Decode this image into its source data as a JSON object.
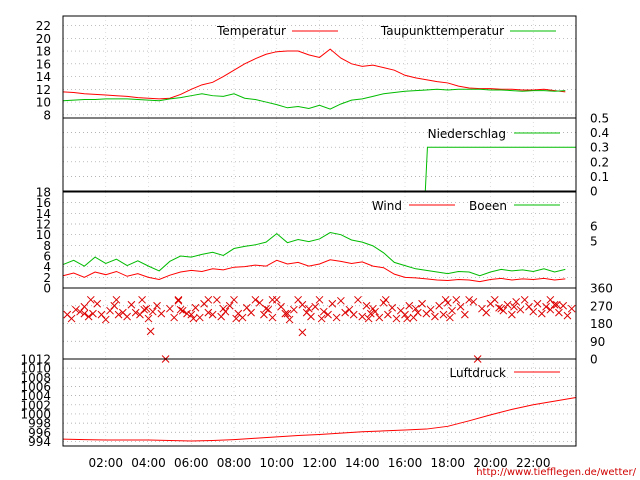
{
  "chart_data": [
    {
      "type": "line",
      "x_hours": [
        0,
        0.5,
        1,
        1.5,
        2,
        2.5,
        3,
        3.5,
        4,
        4.5,
        5,
        5.5,
        6,
        6.5,
        7,
        7.5,
        8,
        8.5,
        9,
        9.5,
        10,
        10.5,
        11,
        11.5,
        12,
        12.5,
        13,
        13.5,
        14,
        14.5,
        15,
        15.5,
        16,
        16.5,
        17,
        17.5,
        18,
        18.5,
        19,
        19.5,
        20,
        20.5,
        21,
        21.5,
        22,
        22.5,
        23,
        23.5
      ],
      "series": [
        {
          "name": "Temperatur",
          "color": "#ff0000",
          "values": [
            11.6,
            11.5,
            11.3,
            11.2,
            11.1,
            11.0,
            10.9,
            10.7,
            10.6,
            10.5,
            10.6,
            11.2,
            12.0,
            12.7,
            13.1,
            14.0,
            15.0,
            16.0,
            16.8,
            17.5,
            17.9,
            18.0,
            18.0,
            17.4,
            17.0,
            18.3,
            16.9,
            16.0,
            15.6,
            15.8,
            15.4,
            15.0,
            14.2,
            13.8,
            13.5,
            13.2,
            13.0,
            12.5,
            12.2,
            12.1,
            12.1,
            12.0,
            12.0,
            11.9,
            11.9,
            12.0,
            11.8,
            11.6
          ]
        },
        {
          "name": "Taupunkttemperatur",
          "color": "#00bb00",
          "values": [
            10.2,
            10.3,
            10.4,
            10.4,
            10.5,
            10.5,
            10.5,
            10.4,
            10.3,
            10.2,
            10.5,
            10.7,
            11.0,
            11.3,
            11.0,
            10.9,
            11.3,
            10.6,
            10.4,
            10.0,
            9.6,
            9.1,
            9.3,
            9.0,
            9.5,
            8.9,
            9.7,
            10.3,
            10.5,
            10.9,
            11.3,
            11.5,
            11.7,
            11.8,
            11.9,
            12.0,
            11.9,
            12.0,
            12.0,
            12.0,
            11.9,
            11.9,
            11.8,
            11.7,
            11.8,
            11.8,
            11.7,
            11.8
          ]
        }
      ],
      "yticks": [
        8,
        10,
        12,
        14,
        16,
        18,
        20,
        22
      ],
      "ylim": [
        7.5,
        23.5
      ]
    },
    {
      "type": "line",
      "series": [
        {
          "name": "Niederschlag",
          "color": "#00bb00",
          "points": [
            [
              0,
              0
            ],
            [
              16.95,
              0
            ],
            [
              17.05,
              0.3
            ],
            [
              24,
              0.3
            ]
          ]
        }
      ],
      "yticks_right": [
        0,
        0.1,
        0.2,
        0.3,
        0.4,
        0.5
      ],
      "ylim": [
        0,
        0.5
      ]
    },
    {
      "type": "line",
      "x_hours": [
        0,
        0.5,
        1,
        1.5,
        2,
        2.5,
        3,
        3.5,
        4,
        4.5,
        5,
        5.5,
        6,
        6.5,
        7,
        7.5,
        8,
        8.5,
        9,
        9.5,
        10,
        10.5,
        11,
        11.5,
        12,
        12.5,
        13,
        13.5,
        14,
        14.5,
        15,
        15.5,
        16,
        16.5,
        17,
        17.5,
        18,
        18.5,
        19,
        19.5,
        20,
        20.5,
        21,
        21.5,
        22,
        22.5,
        23,
        23.5
      ],
      "series": [
        {
          "name": "Wind",
          "color": "#ff0000",
          "values": [
            2.3,
            2.8,
            2.0,
            3.0,
            2.5,
            3.1,
            2.2,
            2.7,
            2.0,
            1.6,
            2.4,
            3.0,
            3.3,
            3.1,
            3.6,
            3.4,
            3.9,
            4.0,
            4.3,
            4.1,
            5.2,
            4.5,
            4.8,
            4.1,
            4.5,
            5.3,
            5.0,
            4.6,
            4.9,
            4.1,
            3.8,
            2.6,
            2.0,
            1.9,
            1.7,
            1.5,
            1.4,
            1.6,
            1.5,
            1.2,
            1.6,
            1.8,
            1.5,
            1.7,
            1.6,
            1.8,
            1.5,
            1.7
          ]
        },
        {
          "name": "Boeen",
          "color": "#00bb00",
          "values": [
            4.4,
            5.2,
            4.1,
            5.8,
            4.6,
            5.4,
            4.2,
            5.1,
            4.1,
            3.2,
            5.0,
            6.0,
            5.8,
            6.3,
            6.7,
            6.1,
            7.4,
            7.8,
            8.1,
            8.6,
            10.2,
            8.5,
            9.1,
            8.7,
            9.2,
            10.4,
            10.0,
            9.0,
            8.6,
            7.9,
            6.6,
            4.8,
            4.2,
            3.6,
            3.3,
            3.0,
            2.7,
            3.1,
            3.0,
            2.3,
            3.0,
            3.5,
            3.2,
            3.4,
            3.1,
            3.6,
            3.0,
            3.5
          ]
        }
      ],
      "yticks": [
        0,
        2,
        4,
        6,
        8,
        10,
        12,
        14,
        16,
        18
      ],
      "yticks_right": [
        "5",
        "6"
      ],
      "ylim": [
        0,
        18
      ]
    },
    {
      "type": "scatter",
      "series": [
        {
          "name": "",
          "color": "#dd0000",
          "points": [
            [
              0.2,
              225
            ],
            [
              0.4,
              205
            ],
            [
              0.6,
              250
            ],
            [
              0.8,
              240
            ],
            [
              1.0,
              265
            ],
            [
              1.2,
              215
            ],
            [
              1.4,
              230
            ],
            [
              1.6,
              280
            ],
            [
              1.8,
              225
            ],
            [
              2.0,
              200
            ],
            [
              2.2,
              245
            ],
            [
              2.4,
              270
            ],
            [
              2.6,
              225
            ],
            [
              2.8,
              235
            ],
            [
              3.0,
              215
            ],
            [
              3.2,
              275
            ],
            [
              3.4,
              235
            ],
            [
              3.6,
              225
            ],
            [
              3.8,
              250
            ],
            [
              4.0,
              205
            ],
            [
              4.2,
              240
            ],
            [
              4.4,
              270
            ],
            [
              4.6,
              230
            ],
            [
              4.8,
              0
            ],
            [
              5.0,
              255
            ],
            [
              5.2,
              210
            ],
            [
              5.4,
              295
            ],
            [
              5.6,
              245
            ],
            [
              5.8,
              230
            ],
            [
              6.0,
              225
            ],
            [
              6.2,
              260
            ],
            [
              6.4,
              210
            ],
            [
              6.6,
              280
            ],
            [
              6.8,
              235
            ],
            [
              7.0,
              225
            ],
            [
              7.2,
              300
            ],
            [
              7.4,
              215
            ],
            [
              7.6,
              240
            ],
            [
              7.8,
              270
            ],
            [
              8.0,
              300
            ],
            [
              8.2,
              230
            ],
            [
              8.4,
              210
            ],
            [
              8.6,
              260
            ],
            [
              8.8,
              235
            ],
            [
              9.0,
              300
            ],
            [
              9.2,
              285
            ],
            [
              9.4,
              225
            ],
            [
              9.6,
              250
            ],
            [
              9.8,
              210
            ],
            [
              10.0,
              300
            ],
            [
              10.2,
              265
            ],
            [
              10.4,
              230
            ],
            [
              10.6,
              200
            ],
            [
              10.8,
              250
            ],
            [
              11.0,
              300
            ],
            [
              11.2,
              275
            ],
            [
              11.4,
              235
            ],
            [
              11.6,
              215
            ],
            [
              11.8,
              265
            ],
            [
              12.0,
              300
            ],
            [
              12.2,
              240
            ],
            [
              12.4,
              225
            ],
            [
              12.6,
              280
            ],
            [
              12.8,
              210
            ],
            [
              13.0,
              295
            ],
            [
              13.2,
              235
            ],
            [
              13.4,
              250
            ],
            [
              13.6,
              225
            ],
            [
              13.8,
              300
            ],
            [
              14.0,
              215
            ],
            [
              14.2,
              270
            ],
            [
              14.4,
              230
            ],
            [
              14.6,
              240
            ],
            [
              14.8,
              210
            ],
            [
              15.0,
              285
            ],
            [
              15.2,
              225
            ],
            [
              15.4,
              260
            ],
            [
              15.6,
              205
            ],
            [
              15.8,
              245
            ],
            [
              16.0,
              225
            ],
            [
              16.2,
              270
            ],
            [
              16.4,
              210
            ],
            [
              16.6,
              235
            ],
            [
              16.8,
              280
            ],
            [
              17.0,
              230
            ],
            [
              17.2,
              250
            ],
            [
              17.4,
              215
            ],
            [
              17.6,
              270
            ],
            [
              17.8,
              225
            ],
            [
              18.0,
              285
            ],
            [
              18.2,
              245
            ],
            [
              18.4,
              300
            ],
            [
              18.6,
              265
            ],
            [
              18.8,
              225
            ],
            [
              19.0,
              300
            ],
            [
              19.2,
              290
            ],
            [
              19.4,
              0
            ],
            [
              19.6,
              255
            ],
            [
              19.8,
              235
            ],
            [
              20.0,
              280
            ],
            [
              20.2,
              300
            ],
            [
              20.4,
              260
            ],
            [
              20.6,
              245
            ],
            [
              20.8,
              275
            ],
            [
              21.0,
              225
            ],
            [
              21.2,
              290
            ],
            [
              21.4,
              250
            ],
            [
              21.6,
              300
            ],
            [
              21.8,
              265
            ],
            [
              22.0,
              240
            ],
            [
              22.2,
              280
            ],
            [
              22.4,
              230
            ],
            [
              22.6,
              265
            ],
            [
              22.8,
              250
            ],
            [
              23.0,
              275
            ],
            [
              23.2,
              235
            ],
            [
              23.4,
              270
            ],
            [
              23.6,
              220
            ],
            [
              23.8,
              255
            ],
            [
              1.3,
              300
            ],
            [
              2.5,
              300
            ],
            [
              3.7,
              300
            ],
            [
              5.4,
              300
            ],
            [
              6.8,
              300
            ],
            [
              9.8,
              300
            ],
            [
              15.1,
              300
            ],
            [
              17.9,
              300
            ],
            [
              22.8,
              300
            ],
            [
              3.9,
              255
            ],
            [
              5.5,
              250
            ],
            [
              7.5,
              255
            ],
            [
              9.5,
              255
            ],
            [
              11.5,
              255
            ],
            [
              14.5,
              255
            ],
            [
              16.5,
              255
            ],
            [
              20.5,
              255
            ],
            [
              21.1,
              265
            ],
            [
              23.1,
              275
            ],
            [
              6.1,
              205
            ],
            [
              8.1,
              205
            ],
            [
              12.1,
              205
            ],
            [
              14.3,
              205
            ],
            [
              16.1,
              205
            ],
            [
              18.1,
              210
            ],
            [
              4.1,
              140
            ],
            [
              11.2,
              135
            ],
            [
              1.0,
              230
            ],
            [
              10.5,
              230
            ]
          ]
        }
      ],
      "yticks_right": [
        0,
        90,
        180,
        270,
        360
      ],
      "ylim": [
        0,
        360
      ]
    },
    {
      "type": "line",
      "x_hours": [
        0,
        1,
        2,
        3,
        4,
        5,
        6,
        7,
        8,
        9,
        10,
        11,
        12,
        13,
        14,
        15,
        16,
        17,
        18,
        19,
        20,
        21,
        22,
        23,
        24
      ],
      "series": [
        {
          "name": "Luftdruck",
          "color": "#ff0000",
          "values": [
            994.5,
            994.4,
            994.3,
            994.3,
            994.3,
            994.2,
            994.1,
            994.2,
            994.4,
            994.7,
            995.0,
            995.3,
            995.5,
            995.8,
            996.1,
            996.3,
            996.5,
            996.7,
            997.3,
            998.5,
            999.8,
            1001.0,
            1002.0,
            1002.8,
            1003.6
          ]
        }
      ],
      "yticks": [
        994,
        996,
        998,
        1000,
        1002,
        1004,
        1006,
        1008,
        1010,
        1012
      ],
      "ylim": [
        993,
        1012
      ]
    }
  ],
  "x_axis": {
    "labels": [
      "02:00",
      "04:00",
      "06:00",
      "08:00",
      "10:00",
      "12:00",
      "14:00",
      "16:00",
      "18:00",
      "20:00",
      "22:00"
    ],
    "label_hours": [
      2,
      4,
      6,
      8,
      10,
      12,
      14,
      16,
      18,
      20,
      22
    ],
    "range_hours": [
      0,
      24
    ]
  },
  "source_url": "http://www.tiefflegen.de/wetter/"
}
